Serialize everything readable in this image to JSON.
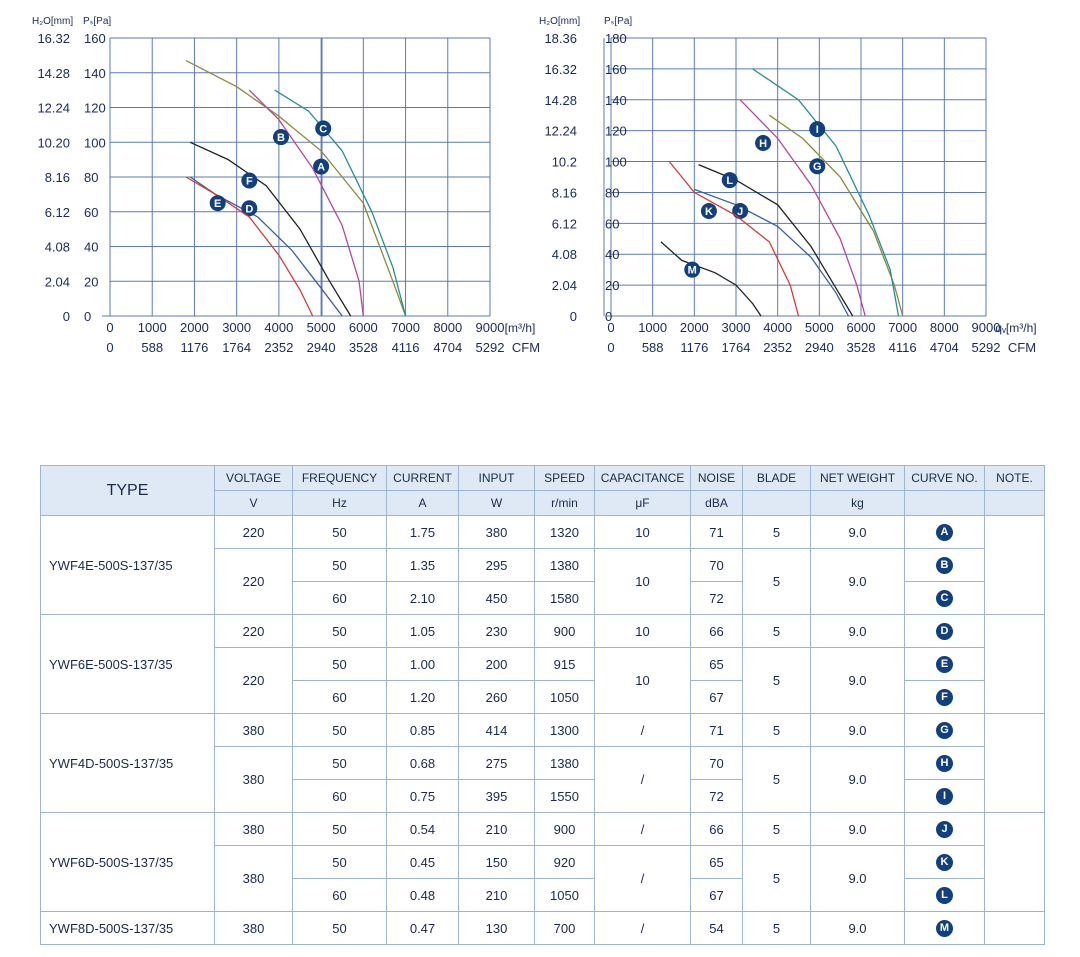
{
  "chart_data": [
    {
      "type": "line",
      "left_units": "H₂O[mm]",
      "left_ticks": [
        "16.32",
        "14.28",
        "12.24",
        "10.20",
        "8.16",
        "6.12",
        "4.08",
        "2.04",
        "0"
      ],
      "ylabel": "Pₛ[Pa]",
      "y_ticks": [
        160,
        140,
        120,
        100,
        80,
        60,
        40,
        20,
        0
      ],
      "ylim": [
        0,
        160
      ],
      "xlim": [
        0,
        9000
      ],
      "x_ticks": [
        0,
        1000,
        2000,
        3000,
        4000,
        5000,
        6000,
        7000,
        8000,
        9000
      ],
      "xlabel": "[m³/h]",
      "cfm_ticks": [
        "0",
        "588",
        "1176",
        "1764",
        "2352",
        "2940",
        "3528",
        "4116",
        "4704",
        "5292"
      ],
      "cfm_label": "CFM",
      "grid": true,
      "series": [
        {
          "name": "A",
          "color": "#8b8a3a",
          "label_at": [
            5000,
            86
          ],
          "points": [
            [
              1800,
              147
            ],
            [
              3000,
              132
            ],
            [
              4000,
              115
            ],
            [
              5000,
              95
            ],
            [
              6000,
              65
            ],
            [
              6700,
              20
            ],
            [
              7000,
              0
            ]
          ]
        },
        {
          "name": "B",
          "color": "#b4479c",
          "label_at": [
            4050,
            103
          ],
          "points": [
            [
              3300,
              130
            ],
            [
              4000,
              113
            ],
            [
              4800,
              85
            ],
            [
              5500,
              52
            ],
            [
              5900,
              20
            ],
            [
              6000,
              0
            ]
          ]
        },
        {
          "name": "C",
          "color": "#258e98",
          "label_at": [
            5050,
            108
          ],
          "points": [
            [
              3900,
              130
            ],
            [
              4700,
              118
            ],
            [
              5500,
              95
            ],
            [
              6200,
              60
            ],
            [
              6700,
              28
            ],
            [
              7000,
              0
            ]
          ]
        },
        {
          "name": "D",
          "color": "#3a5ea3",
          "label_at": [
            3300,
            62
          ],
          "points": [
            [
              1900,
              80
            ],
            [
              2500,
              70
            ],
            [
              3500,
              57
            ],
            [
              4300,
              38
            ],
            [
              5000,
              16
            ],
            [
              5500,
              0
            ]
          ]
        },
        {
          "name": "E",
          "color": "#d43a3a",
          "label_at": [
            2550,
            65
          ],
          "points": [
            [
              1800,
              80
            ],
            [
              2500,
              70
            ],
            [
              3300,
              57
            ],
            [
              4000,
              35
            ],
            [
              4500,
              15
            ],
            [
              4800,
              0
            ]
          ]
        },
        {
          "name": "F",
          "color": "#222222",
          "label_at": [
            3300,
            78
          ],
          "points": [
            [
              1900,
              100
            ],
            [
              2800,
              90
            ],
            [
              3700,
              75
            ],
            [
              4500,
              50
            ],
            [
              5200,
              20
            ],
            [
              5700,
              0
            ]
          ]
        }
      ]
    },
    {
      "type": "line",
      "left_units": "H₂O[mm]",
      "left_ticks": [
        "18.36",
        "16.32",
        "14.28",
        "12.24",
        "10.2",
        "8.16",
        "6.12",
        "4.08",
        "2.04",
        "0"
      ],
      "ylabel": "Pₛ[Pa]",
      "y_ticks": [
        180,
        160,
        140,
        120,
        100,
        80,
        60,
        40,
        20,
        0
      ],
      "ylim": [
        0,
        180
      ],
      "xlim": [
        0,
        9000
      ],
      "x_ticks": [
        0,
        1000,
        2000,
        3000,
        4000,
        5000,
        6000,
        7000,
        8000,
        9000
      ],
      "xlabel": "qᵥ[m³/h]",
      "cfm_ticks": [
        "0",
        "588",
        "1176",
        "1764",
        "2352",
        "2940",
        "3528",
        "4116",
        "4704",
        "5292"
      ],
      "cfm_label": "CFM",
      "grid": true,
      "series": [
        {
          "name": "G",
          "color": "#8b8a3a",
          "label_at": [
            4950,
            97
          ],
          "points": [
            [
              3800,
              130
            ],
            [
              4600,
              115
            ],
            [
              5500,
              90
            ],
            [
              6300,
              55
            ],
            [
              6800,
              20
            ],
            [
              7000,
              0
            ]
          ]
        },
        {
          "name": "H",
          "color": "#b4479c",
          "label_at": [
            3650,
            112
          ],
          "points": [
            [
              3100,
              140
            ],
            [
              4000,
              115
            ],
            [
              4800,
              85
            ],
            [
              5500,
              50
            ],
            [
              5900,
              20
            ],
            [
              6100,
              0
            ]
          ]
        },
        {
          "name": "I",
          "color": "#258e98",
          "label_at": [
            4950,
            121
          ],
          "points": [
            [
              3400,
              160
            ],
            [
              4500,
              140
            ],
            [
              5400,
              110
            ],
            [
              6200,
              65
            ],
            [
              6700,
              30
            ],
            [
              6900,
              0
            ]
          ]
        },
        {
          "name": "J",
          "color": "#3a5ea3",
          "label_at": [
            3100,
            68
          ],
          "points": [
            [
              2000,
              82
            ],
            [
              3000,
              72
            ],
            [
              4000,
              58
            ],
            [
              4800,
              38
            ],
            [
              5400,
              15
            ],
            [
              5700,
              0
            ]
          ]
        },
        {
          "name": "K",
          "color": "#d43a3a",
          "label_at": [
            2350,
            68
          ],
          "points": [
            [
              1400,
              100
            ],
            [
              2000,
              80
            ],
            [
              3000,
              65
            ],
            [
              3800,
              48
            ],
            [
              4300,
              20
            ],
            [
              4500,
              0
            ]
          ]
        },
        {
          "name": "L",
          "color": "#222222",
          "label_at": [
            2850,
            88
          ],
          "points": [
            [
              2100,
              98
            ],
            [
              3000,
              88
            ],
            [
              4000,
              72
            ],
            [
              4800,
              45
            ],
            [
              5400,
              18
            ],
            [
              5800,
              0
            ]
          ]
        },
        {
          "name": "M",
          "color": "#222222",
          "label_at": [
            1950,
            30
          ],
          "points": [
            [
              1200,
              48
            ],
            [
              1700,
              36
            ],
            [
              2500,
              28
            ],
            [
              3000,
              20
            ],
            [
              3400,
              8
            ],
            [
              3600,
              0
            ]
          ]
        }
      ]
    }
  ],
  "table": {
    "headers": [
      {
        "key": "type",
        "top": "TYPE",
        "bottom": ""
      },
      {
        "key": "voltage",
        "top": "VOLTAGE",
        "bottom": "V"
      },
      {
        "key": "frequency",
        "top": "FREQUENCY",
        "bottom": "Hz"
      },
      {
        "key": "current",
        "top": "CURRENT",
        "bottom": "A"
      },
      {
        "key": "input",
        "top": "INPUT",
        "bottom": "W"
      },
      {
        "key": "speed",
        "top": "SPEED",
        "bottom": "r/min"
      },
      {
        "key": "capacitance",
        "top": "CAPACITANCE",
        "bottom": "μF"
      },
      {
        "key": "noise",
        "top": "NOISE",
        "bottom": "dBA"
      },
      {
        "key": "blade",
        "top": "BLADE",
        "bottom": ""
      },
      {
        "key": "weight",
        "top": "NET WEIGHT",
        "bottom": "kg"
      },
      {
        "key": "curve",
        "top": "CURVE NO.",
        "bottom": ""
      },
      {
        "key": "note",
        "top": "NOTE.",
        "bottom": ""
      }
    ],
    "groups": [
      {
        "type": "YWF4E-500S-137/35",
        "single": {
          "voltage": "220",
          "frequency": "50",
          "current": "1.75",
          "input": "380",
          "speed": "1320",
          "capacitance": "10",
          "noise": "71",
          "blade": "5",
          "weight": "9.0",
          "curve": "A"
        },
        "pair": {
          "voltage": "220",
          "capacitance": "10",
          "blade": "5",
          "weight": "9.0",
          "rows": [
            {
              "frequency": "50",
              "current": "1.35",
              "input": "295",
              "speed": "1380",
              "noise": "70",
              "curve": "B"
            },
            {
              "frequency": "60",
              "current": "2.10",
              "input": "450",
              "speed": "1580",
              "noise": "72",
              "curve": "C"
            }
          ]
        }
      },
      {
        "type": "YWF6E-500S-137/35",
        "single": {
          "voltage": "220",
          "frequency": "50",
          "current": "1.05",
          "input": "230",
          "speed": "900",
          "capacitance": "10",
          "noise": "66",
          "blade": "5",
          "weight": "9.0",
          "curve": "D"
        },
        "pair": {
          "voltage": "220",
          "capacitance": "10",
          "blade": "5",
          "weight": "9.0",
          "rows": [
            {
              "frequency": "50",
              "current": "1.00",
              "input": "200",
              "speed": "915",
              "noise": "65",
              "curve": "E"
            },
            {
              "frequency": "60",
              "current": "1.20",
              "input": "260",
              "speed": "1050",
              "noise": "67",
              "curve": "F"
            }
          ]
        }
      },
      {
        "type": "YWF4D-500S-137/35",
        "single": {
          "voltage": "380",
          "frequency": "50",
          "current": "0.85",
          "input": "414",
          "speed": "1300",
          "capacitance": "/",
          "noise": "71",
          "blade": "5",
          "weight": "9.0",
          "curve": "G"
        },
        "pair": {
          "voltage": "380",
          "capacitance": "/",
          "blade": "5",
          "weight": "9.0",
          "rows": [
            {
              "frequency": "50",
              "current": "0.68",
              "input": "275",
              "speed": "1380",
              "noise": "70",
              "curve": "H"
            },
            {
              "frequency": "60",
              "current": "0.75",
              "input": "395",
              "speed": "1550",
              "noise": "72",
              "curve": "I"
            }
          ]
        }
      },
      {
        "type": "YWF6D-500S-137/35",
        "single": {
          "voltage": "380",
          "frequency": "50",
          "current": "0.54",
          "input": "210",
          "speed": "900",
          "capacitance": "/",
          "noise": "66",
          "blade": "5",
          "weight": "9.0",
          "curve": "J"
        },
        "pair": {
          "voltage": "380",
          "capacitance": "/",
          "blade": "5",
          "weight": "9.0",
          "rows": [
            {
              "frequency": "50",
              "current": "0.45",
              "input": "150",
              "speed": "920",
              "noise": "65",
              "curve": "K"
            },
            {
              "frequency": "60",
              "current": "0.48",
              "input": "210",
              "speed": "1050",
              "noise": "67",
              "curve": "L"
            }
          ]
        }
      },
      {
        "type": "YWF8D-500S-137/35",
        "single": {
          "voltage": "380",
          "frequency": "50",
          "current": "0.47",
          "input": "130",
          "speed": "700",
          "capacitance": "/",
          "noise": "54",
          "blade": "5",
          "weight": "9.0",
          "curve": "M"
        }
      }
    ]
  }
}
